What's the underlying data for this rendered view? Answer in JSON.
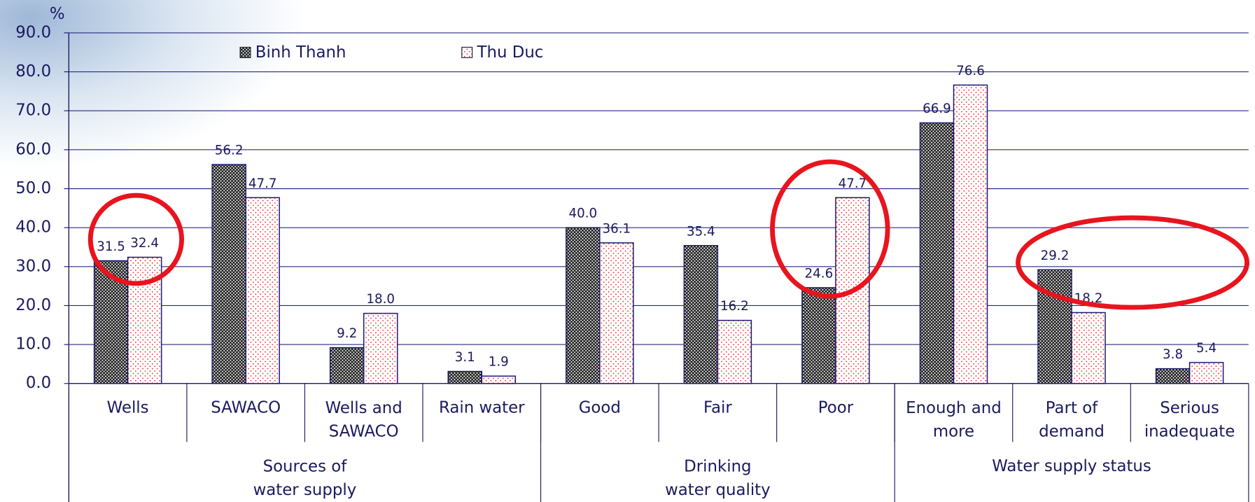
{
  "chart_data": {
    "type": "bar",
    "ylabel": "%",
    "categories": [
      "Wells",
      "SAWACO",
      "Wells and\nSAWACO",
      "Rain water",
      "Good",
      "Fair",
      "Poor",
      "Enough and\nmore",
      "Part of\ndemand",
      "Serious\ninadequate"
    ],
    "groups": [
      {
        "name": "Sources of\nwater supply",
        "categories": [
          "Wells",
          "SAWACO",
          "Wells and\nSAWACO",
          "Rain water"
        ]
      },
      {
        "name": "Drinking\nwater quality",
        "categories": [
          "Good",
          "Fair",
          "Poor"
        ]
      },
      {
        "name": "Water supply status",
        "categories": [
          "Enough and\nmore",
          "Part of\ndemand",
          "Serious\ninadequate"
        ]
      }
    ],
    "series": [
      {
        "name": "Binh Thanh",
        "pattern": "hatch",
        "values": [
          31.5,
          56.2,
          9.2,
          3.1,
          40.0,
          35.4,
          24.6,
          66.9,
          29.2,
          3.8
        ],
        "value_labels": [
          "31.5",
          "56.2",
          "9.2",
          "3.1",
          "40.0",
          "35.4",
          "24.6",
          "66.9",
          "29.2",
          "3.8"
        ]
      },
      {
        "name": "Thu Duc",
        "pattern": "dots",
        "values": [
          32.4,
          47.7,
          18.0,
          1.9,
          36.1,
          16.2,
          47.7,
          76.6,
          18.2,
          5.4
        ],
        "value_labels": [
          "32.4",
          "47.7",
          "18.0",
          "1.9",
          "36.1",
          "16.2",
          "47.7",
          "76.6",
          "18.2",
          "5.4"
        ]
      }
    ],
    "ylim": [
      0,
      90
    ],
    "yticks": [
      {
        "value": 0,
        "label": "0.0"
      },
      {
        "value": 10,
        "label": "10.0"
      },
      {
        "value": 20,
        "label": "20.0"
      },
      {
        "value": 30,
        "label": "30.0"
      },
      {
        "value": 40,
        "label": "40.0"
      },
      {
        "value": 50,
        "label": "50.0"
      },
      {
        "value": 60,
        "label": "60.0"
      },
      {
        "value": 70,
        "label": "70.0"
      },
      {
        "value": 80,
        "label": "80.0"
      },
      {
        "value": 90,
        "label": "90.0"
      }
    ],
    "grid": true,
    "legend": "top"
  }
}
